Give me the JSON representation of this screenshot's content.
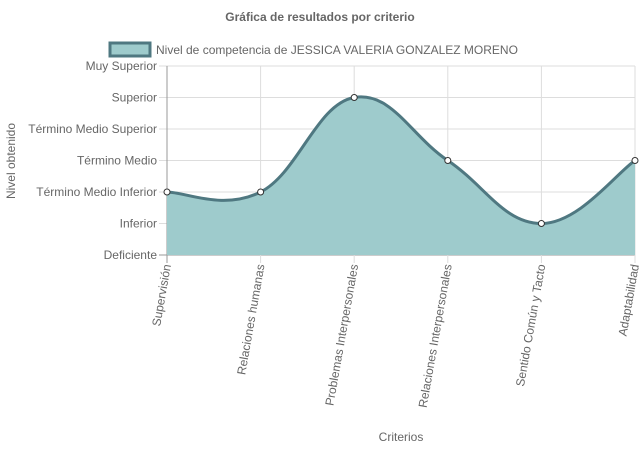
{
  "chart_data": {
    "type": "area",
    "title": "Gráfica de resultados por criterio",
    "xlabel": "Criterios",
    "ylabel": "Nivel obtenido",
    "categories": [
      "Supervisión",
      "Relaciones humanas",
      "Problemas Interpersonales",
      "Relaciones Interpersonales",
      "Sentido Común y Tacto",
      "Adaptabilidad"
    ],
    "y_levels": [
      "Deficiente",
      "Inferior",
      "Término Medio Inferior",
      "Término Medio",
      "Término Medio Superior",
      "Superior",
      "Muy Superior"
    ],
    "ylim": [
      0,
      6
    ],
    "series": [
      {
        "name": "Nivel de competencia de JESSICA VALERIA GONZALEZ MORENO",
        "values": [
          2,
          2,
          5,
          3,
          1,
          3
        ],
        "fill_color": "#9ecbcc",
        "line_color": "#4f7881"
      }
    ],
    "grid": true,
    "legend_position": "top"
  }
}
